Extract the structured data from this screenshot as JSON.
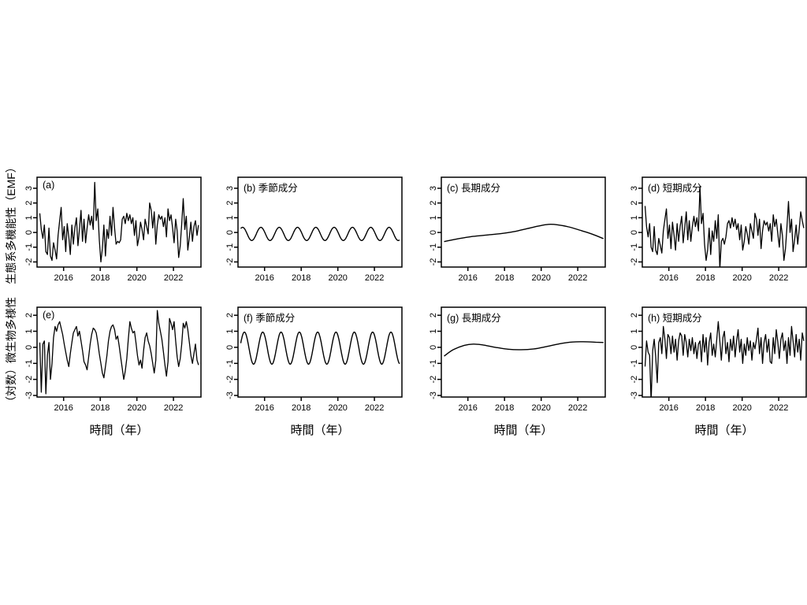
{
  "figure": {
    "background": "#ffffff",
    "line_color": "#000000",
    "row_labels": [
      "生態系多機能性（EMF）",
      "（対数）微生物多様性"
    ],
    "xlabel": "時間（年）"
  },
  "chart_data": {
    "type": "line",
    "x_range": [
      2014.55,
      2023.5
    ],
    "x_ticks": [
      2016,
      2018,
      2020,
      2022
    ],
    "x_start": 2014.7,
    "x_step_years": 0.0833,
    "panels": [
      {
        "id": "a",
        "annotation": "(a)",
        "kind": "series",
        "ylim": [
          -2.35,
          3.75
        ],
        "yticks": [
          -2,
          -1,
          0,
          1,
          2,
          3
        ],
        "values": [
          1.3,
          0.2,
          -0.4,
          0.5,
          -1.3,
          -1.5,
          0.3,
          -1.6,
          -1.9,
          -0.7,
          -1.2,
          -1.8,
          -0.2,
          0.8,
          1.7,
          -0.5,
          0.4,
          -1.3,
          0.6,
          -0.3,
          -1.5,
          0.5,
          -0.8,
          0.3,
          1.0,
          -0.9,
          0.2,
          1.5,
          -0.6,
          0.9,
          -0.7,
          0.3,
          1.2,
          0.5,
          1.1,
          0.2,
          3.4,
          0.8,
          1.6,
          -0.5,
          -2.0,
          -1.1,
          0.5,
          -1.6,
          0.2,
          -0.4,
          1.1,
          -0.2,
          1.7,
          0.3,
          -0.8,
          -0.6,
          -0.7,
          -0.5,
          0.9,
          1.1,
          0.6,
          1.3,
          0.8,
          1.2,
          0.6,
          1.0,
          -0.2,
          0.8,
          -0.9,
          -0.3,
          0.7,
          0.2,
          -0.5,
          0.9,
          0.4,
          -0.1,
          2.0,
          1.5,
          0.3,
          1.4,
          -0.8,
          0.5,
          1.2,
          0.9,
          1.1,
          0.4,
          1.0,
          -0.3,
          1.6,
          0.8,
          1.2,
          0.3,
          -0.7,
          0.9,
          0.1,
          -1.7,
          -0.9,
          0.6,
          2.3,
          0.2,
          1.1,
          -1.2,
          -0.3,
          0.7,
          -0.6,
          0.4,
          0.8,
          -0.2,
          0.5
        ]
      },
      {
        "id": "b",
        "annotation": "(b) 季節成分",
        "kind": "sine",
        "ylim": [
          -2.35,
          3.75
        ],
        "yticks": [
          -2,
          -1,
          0,
          1,
          2,
          3
        ],
        "sine": {
          "mean": -0.1,
          "amplitude": 0.45,
          "period": 1,
          "peak_at": 2014.8
        }
      },
      {
        "id": "c",
        "annotation": "(c) 長期成分",
        "kind": "points",
        "ylim": [
          -2.35,
          3.75
        ],
        "yticks": [
          -2,
          -1,
          0,
          1,
          2,
          3
        ],
        "points": [
          [
            2014.7,
            -0.62
          ],
          [
            2015.5,
            -0.42
          ],
          [
            2016.2,
            -0.28
          ],
          [
            2017.0,
            -0.18
          ],
          [
            2017.8,
            -0.08
          ],
          [
            2018.5,
            0.05
          ],
          [
            2019.2,
            0.25
          ],
          [
            2019.8,
            0.42
          ],
          [
            2020.4,
            0.55
          ],
          [
            2020.9,
            0.52
          ],
          [
            2021.5,
            0.38
          ],
          [
            2022.2,
            0.12
          ],
          [
            2022.8,
            -0.12
          ],
          [
            2023.4,
            -0.42
          ]
        ]
      },
      {
        "id": "d",
        "annotation": "(d) 短期成分",
        "kind": "series",
        "ylim": [
          -2.35,
          3.75
        ],
        "yticks": [
          -2,
          -1,
          0,
          1,
          2,
          3
        ],
        "values": [
          1.8,
          0.4,
          -0.3,
          0.6,
          -1.0,
          -1.3,
          0.4,
          -1.2,
          -1.5,
          -0.4,
          -0.9,
          -1.4,
          0.1,
          0.9,
          1.6,
          -0.4,
          0.5,
          -1.1,
          0.7,
          -0.2,
          -1.2,
          0.6,
          -0.6,
          0.4,
          1.1,
          -0.7,
          0.3,
          1.4,
          -0.5,
          0.8,
          -0.6,
          0.4,
          1.1,
          0.4,
          1.0,
          0.1,
          3.1,
          0.6,
          1.3,
          -0.8,
          -1.9,
          -1.2,
          0.3,
          -1.5,
          0.1,
          -0.6,
          0.8,
          -0.4,
          1.2,
          -2.5,
          -0.6,
          -0.4,
          -0.8,
          -0.3,
          0.6,
          0.8,
          0.3,
          1.0,
          0.4,
          0.9,
          0.2,
          0.6,
          -0.5,
          0.5,
          -1.2,
          -0.6,
          0.4,
          -0.1,
          -0.8,
          0.6,
          0.1,
          -0.4,
          1.3,
          0.9,
          -0.2,
          0.9,
          -1.1,
          0.1,
          0.8,
          0.5,
          0.7,
          0.1,
          0.6,
          -0.6,
          1.2,
          0.4,
          0.9,
          -0.1,
          -1.0,
          0.6,
          -0.2,
          -1.9,
          -1.1,
          0.4,
          2.1,
          0.0,
          0.9,
          -1.3,
          -0.5,
          0.5,
          -0.8,
          0.2,
          1.4,
          0.8,
          0.3
        ]
      },
      {
        "id": "e",
        "annotation": "(e)",
        "kind": "series",
        "ylim": [
          -3.1,
          2.5
        ],
        "yticks": [
          -3,
          -2,
          -1,
          0,
          1,
          2
        ],
        "values": [
          0.3,
          -2.8,
          0.2,
          0.4,
          -2.9,
          -0.5,
          0.3,
          -2.0,
          -1.0,
          0.6,
          1.3,
          1.0,
          1.4,
          1.6,
          1.2,
          0.8,
          0.2,
          -0.3,
          -0.8,
          -1.2,
          -0.4,
          0.3,
          0.9,
          1.1,
          1.3,
          0.7,
          1.0,
          0.4,
          -0.2,
          -0.9,
          -1.1,
          -1.4,
          -0.6,
          0.2,
          0.8,
          1.2,
          1.1,
          0.9,
          0.3,
          -0.4,
          -1.0,
          -1.6,
          -1.9,
          -1.2,
          -0.5,
          0.4,
          1.0,
          1.3,
          1.4,
          1.1,
          0.5,
          0.7,
          0.1,
          -0.6,
          -1.3,
          -2.0,
          -1.5,
          -0.7,
          0.5,
          1.6,
          1.2,
          0.9,
          1.0,
          0.3,
          -0.5,
          -1.1,
          -0.8,
          -1.3,
          -0.2,
          0.6,
          0.9,
          0.4,
          0.1,
          -0.4,
          -1.0,
          -1.6,
          -0.8,
          2.3,
          1.5,
          1.0,
          0.5,
          -0.3,
          -1.1,
          -1.8,
          -0.9,
          1.8,
          1.5,
          1.1,
          1.6,
          0.4,
          -0.6,
          -1.2,
          -0.7,
          0.2,
          1.5,
          1.2,
          1.6,
          1.1,
          0.3,
          -0.5,
          -1.0,
          -0.4,
          0.2,
          -0.8,
          -1.1
        ]
      },
      {
        "id": "f",
        "annotation": "(f) 季節成分",
        "kind": "sine",
        "ylim": [
          -3.1,
          2.5
        ],
        "yticks": [
          -3,
          -2,
          -1,
          0,
          1,
          2
        ],
        "sine": {
          "mean": -0.05,
          "amplitude": 1.0,
          "period": 1,
          "peak_at": 2014.9
        }
      },
      {
        "id": "g",
        "annotation": "(g) 長期成分",
        "kind": "points",
        "ylim": [
          -3.1,
          2.5
        ],
        "yticks": [
          -3,
          -2,
          -1,
          0,
          1,
          2
        ],
        "points": [
          [
            2014.7,
            -0.55
          ],
          [
            2015.2,
            -0.15
          ],
          [
            2015.8,
            0.12
          ],
          [
            2016.3,
            0.2
          ],
          [
            2016.8,
            0.15
          ],
          [
            2017.5,
            0.0
          ],
          [
            2018.2,
            -0.12
          ],
          [
            2018.9,
            -0.15
          ],
          [
            2019.6,
            -0.1
          ],
          [
            2020.3,
            0.05
          ],
          [
            2021.0,
            0.22
          ],
          [
            2021.7,
            0.33
          ],
          [
            2022.3,
            0.35
          ],
          [
            2023.0,
            0.32
          ],
          [
            2023.4,
            0.3
          ]
        ]
      },
      {
        "id": "h",
        "annotation": "(h) 短期成分",
        "kind": "series",
        "ylim": [
          -3.1,
          2.5
        ],
        "yticks": [
          -3,
          -2,
          -1,
          0,
          1,
          2
        ],
        "values": [
          -1.2,
          0.4,
          -0.3,
          -0.5,
          -3.4,
          -0.2,
          0.5,
          -0.6,
          -2.2,
          0.3,
          0.6,
          -0.4,
          1.3,
          0.5,
          -0.7,
          0.8,
          0.6,
          -0.4,
          0.7,
          -0.3,
          0.5,
          -0.8,
          0.4,
          0.9,
          0.7,
          -0.5,
          0.8,
          0.3,
          -0.6,
          0.5,
          -0.2,
          0.6,
          -0.4,
          0.3,
          -0.7,
          0.2,
          0.4,
          -0.9,
          0.8,
          -0.3,
          0.6,
          -1.1,
          0.3,
          0.9,
          -0.5,
          0.2,
          -0.6,
          0.5,
          1.6,
          0.4,
          -0.8,
          0.6,
          1.0,
          -0.4,
          0.3,
          -0.9,
          0.5,
          -0.2,
          0.7,
          -0.6,
          0.4,
          1.1,
          -0.3,
          0.5,
          -1.0,
          0.2,
          -0.5,
          0.6,
          -0.2,
          0.4,
          -0.8,
          0.3,
          -0.1,
          0.5,
          1.2,
          -0.4,
          0.6,
          -1.0,
          0.3,
          0.8,
          -0.3,
          0.5,
          -0.9,
          -1.0,
          0.6,
          -0.4,
          1.1,
          0.3,
          -0.7,
          0.5,
          0.9,
          -0.2,
          0.4,
          -1.0,
          0.6,
          -0.5,
          1.3,
          0.4,
          -0.6,
          0.8,
          -0.3,
          0.5,
          -0.8,
          0.9,
          0.4
        ]
      }
    ]
  }
}
